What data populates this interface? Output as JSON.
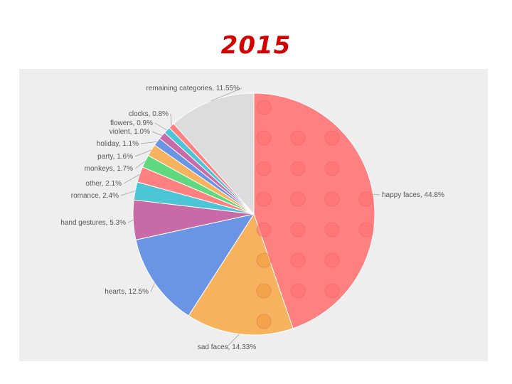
{
  "title": "2015",
  "chart_data": {
    "type": "pie",
    "title": "2015",
    "slices": [
      {
        "name": "happy faces",
        "value": 44.8,
        "label": "happy faces, 44.8%",
        "color": "#ff8080",
        "icon": "happy-face-emoji"
      },
      {
        "name": "sad faces",
        "value": 14.33,
        "label": "sad faces, 14.33%",
        "color": "#f6b25c",
        "icon": "sad-face-emoji"
      },
      {
        "name": "hearts",
        "value": 12.5,
        "label": "hearts, 12.5%",
        "color": "#6a94e4",
        "icon": "blue-heart-emoji"
      },
      {
        "name": "hand gestures",
        "value": 5.3,
        "label": "hand gestures, 5.3%",
        "color": "#c86aa8",
        "icon": "hand-gesture-emoji"
      },
      {
        "name": "romance",
        "value": 2.4,
        "label": "romance, 2.4%",
        "color": "#4cc5d6",
        "icon": "lips-emoji"
      },
      {
        "name": "other",
        "value": 2.1,
        "label": "other, 2.1%",
        "color": "#ff8080",
        "icon": "misc-emoji"
      },
      {
        "name": "monkeys",
        "value": 1.7,
        "label": "monkeys, 1.7%",
        "color": "#5fd880",
        "icon": "monkey-emoji"
      },
      {
        "name": "party",
        "value": 1.6,
        "label": "party, 1.6%",
        "color": "#f6b25c",
        "icon": "party-emoji"
      },
      {
        "name": "holiday",
        "value": 1.1,
        "label": "holiday, 1.1%",
        "color": "#6a94e4",
        "icon": "holiday-emoji"
      },
      {
        "name": "violent",
        "value": 1.0,
        "label": "violent, 1.0%",
        "color": "#c86aa8",
        "icon": "violent-emoji"
      },
      {
        "name": "flowers",
        "value": 0.9,
        "label": "flowers, 0.9%",
        "color": "#4cc5d6",
        "icon": "flower-emoji"
      },
      {
        "name": "clocks",
        "value": 0.8,
        "label": "clocks, 0.8%",
        "color": "#ff8080",
        "icon": "clock-emoji"
      },
      {
        "name": "remaining categories",
        "value": 11.55,
        "label": "remaining categories, 11.55%",
        "color": "#dcdcdc",
        "icon": "assorted-emoji"
      }
    ],
    "start_angle": "12 o'clock",
    "direction": "clockwise",
    "legend": "none (leader-line labels)",
    "background": "#eeeeee"
  }
}
